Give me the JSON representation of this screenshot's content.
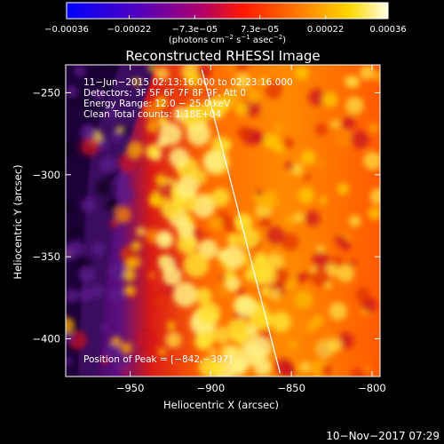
{
  "chart_data": {
    "type": "heatmap",
    "title": "Reconstructed RHESSI Image",
    "xlabel": "Heliocentric X (arcsec)",
    "ylabel": "Heliocentric Y (arcsec)",
    "xlim": [
      -990,
      -795
    ],
    "ylim": [
      -423,
      -233
    ],
    "x_ticks": [
      {
        "value": -950,
        "label": "−950"
      },
      {
        "value": -900,
        "label": "−900"
      },
      {
        "value": -850,
        "label": "−850"
      },
      {
        "value": -800,
        "label": "−800"
      }
    ],
    "y_ticks": [
      {
        "value": -250,
        "label": "−250"
      },
      {
        "value": -300,
        "label": "−300"
      },
      {
        "value": -350,
        "label": "−350"
      },
      {
        "value": -400,
        "label": "−400"
      }
    ],
    "colorbar": {
      "range": [
        -0.00036,
        0.00036
      ],
      "tick_labels": [
        "−0.00036",
        "−0.00022",
        "−7.3e−05",
        "7.3e−05",
        "0.00022",
        "0.00036"
      ],
      "tick_values": [
        -0.00036,
        -0.00022,
        -7.3e-05,
        7.3e-05,
        0.00022,
        0.00036
      ],
      "unit_label_main": "(photons cm",
      "unit_sup1": "−2",
      "unit_mid1": " s",
      "unit_sup2": "−1",
      "unit_mid2": " asec",
      "unit_sup3": "−2",
      "unit_end": ")"
    },
    "info_lines": [
      "11−Jun−2015 02:13:16.000 to 02:23:16.000",
      "Detectors: 3F 5F 6F 7F 8F 9F, Att 0",
      "Energy Range: 12.0 − 25.0 keV",
      "Clean    Total counts: 1.18E+04"
    ],
    "peak_label": "Position of Peak = [−842,−397]",
    "limb_line": {
      "from": [
        -905.5,
        -236
      ],
      "to": [
        -857,
        -421
      ]
    },
    "colormap": "blue-purple-red-orange-yellow-white (RHESSI)"
  },
  "footer": {
    "timestamp": "10−Nov−2017 07:29"
  }
}
